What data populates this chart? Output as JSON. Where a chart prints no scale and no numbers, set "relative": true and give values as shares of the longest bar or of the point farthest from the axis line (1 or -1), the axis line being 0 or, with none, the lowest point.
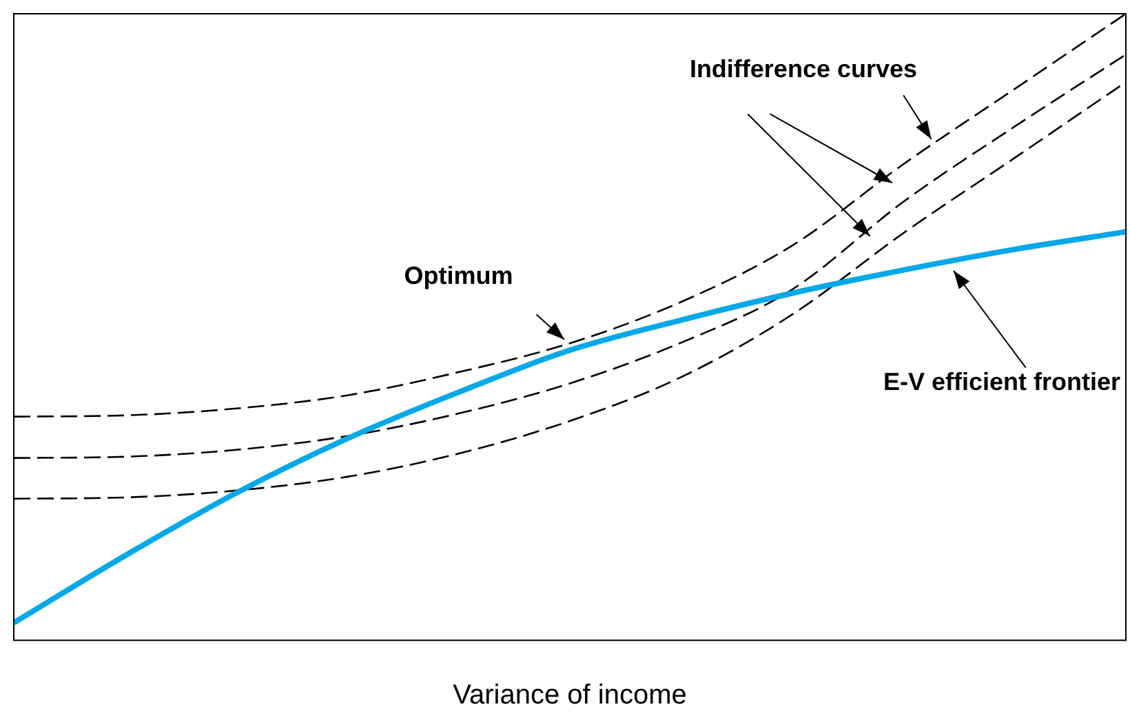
{
  "chart_data": {
    "type": "line",
    "relative": true,
    "xlabel": "Variance of income",
    "grid": false,
    "legend": false,
    "marker": "none",
    "categories": [
      null,
      null,
      null,
      null,
      null,
      null,
      null,
      null,
      null,
      null,
      null
    ],
    "series": [
      {
        "color": "#00a8e8",
        "line_style": "solid",
        "values": [
          0.028,
          0.135,
          0.235,
          0.322,
          0.396,
          0.463,
          0.511,
          0.554,
          0.591,
          0.624,
          0.652
        ]
      },
      {
        "color": "#000000",
        "line_style": "dashed",
        "values": [
          0.357,
          0.359,
          0.37,
          0.391,
          0.428,
          0.474,
          0.54,
          0.63,
          0.76,
          0.88,
          1
        ]
      },
      {
        "color": "#000000",
        "line_style": "dashed",
        "values": [
          0.291,
          0.293,
          0.304,
          0.326,
          0.362,
          0.41,
          0.475,
          0.56,
          0.7,
          0.82,
          0.935
        ]
      },
      {
        "color": "#000000",
        "line_style": "dashed",
        "values": [
          0.226,
          0.228,
          0.239,
          0.261,
          0.298,
          0.35,
          0.42,
          0.52,
          0.65,
          0.77,
          0.891
        ]
      }
    ],
    "annotations": [
      "Indifference curves",
      "Optimum",
      "E-V efficient frontier"
    ]
  }
}
